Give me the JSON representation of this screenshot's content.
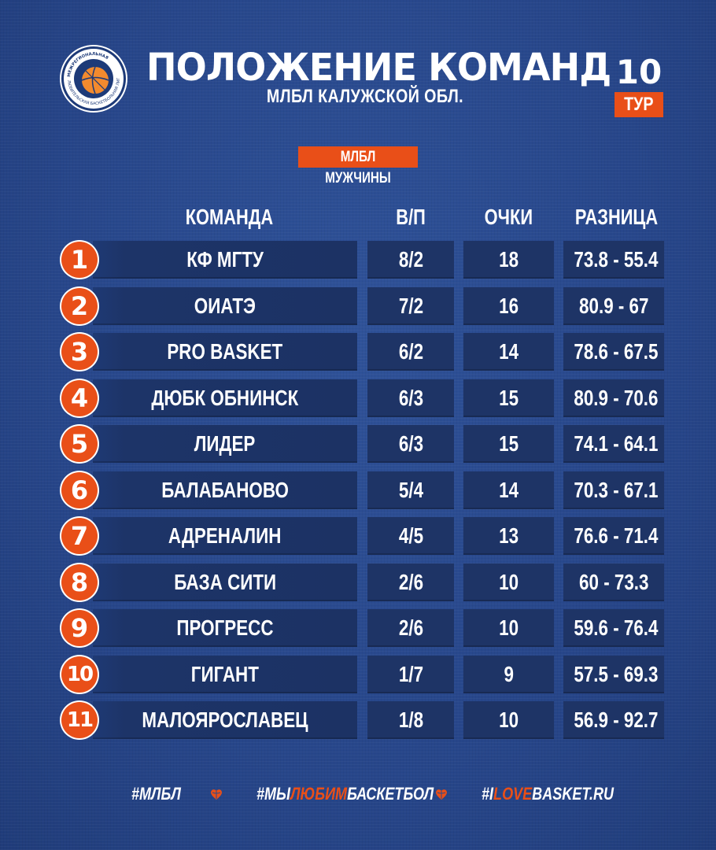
{
  "header": {
    "title": "ПОЛОЖЕНИЕ КОМАНД",
    "subtitle": "МЛБЛ КАЛУЖСКОЙ ОБЛ.",
    "round_number": "10",
    "round_label": "ТУР",
    "league_badge": "МЛБЛ МУЖЧИНЫ"
  },
  "logo": {
    "icon": "basketball-league-logo",
    "text": "МЕЖРЕГИОНАЛЬНАЯ ЛЮБИТЕЛЬСКАЯ БАСКЕТБОЛЬНАЯ ЛИГА"
  },
  "columns": {
    "team": "КОМАНДА",
    "wl": "В/П",
    "points": "ОЧКИ",
    "diff": "РАЗНИЦА"
  },
  "rows": [
    {
      "rank": "1",
      "team": "КФ МГТУ",
      "wl": "8/2",
      "points": "18",
      "diff": "73.8 - 55.4"
    },
    {
      "rank": "2",
      "team": "ОИАТЭ",
      "wl": "7/2",
      "points": "16",
      "diff": "80.9 - 67"
    },
    {
      "rank": "3",
      "team": "PRO BASKET",
      "wl": "6/2",
      "points": "14",
      "diff": "78.6 - 67.5"
    },
    {
      "rank": "4",
      "team": "ДЮБК ОБНИНСК",
      "wl": "6/3",
      "points": "15",
      "diff": "80.9 - 70.6"
    },
    {
      "rank": "5",
      "team": "ЛИДЕР",
      "wl": "6/3",
      "points": "15",
      "diff": "74.1 - 64.1"
    },
    {
      "rank": "6",
      "team": "БАЛАБАНОВО",
      "wl": "5/4",
      "points": "14",
      "diff": "70.3 - 67.1"
    },
    {
      "rank": "7",
      "team": "АДРЕНАЛИН",
      "wl": "4/5",
      "points": "13",
      "diff": "76.6 - 71.4"
    },
    {
      "rank": "8",
      "team": "БАЗА СИТИ",
      "wl": "2/6",
      "points": "10",
      "diff": "60 - 73.3"
    },
    {
      "rank": "9",
      "team": "ПРОГРЕСС",
      "wl": "2/6",
      "points": "10",
      "diff": "59.6 - 76.4"
    },
    {
      "rank": "10",
      "team": "ГИГАНТ",
      "wl": "1/7",
      "points": "9",
      "diff": "57.5 - 69.3"
    },
    {
      "rank": "11",
      "team": "МАЛОЯРОСЛАВЕЦ",
      "wl": "1/8",
      "points": "10",
      "diff": "56.9 - 92.7"
    }
  ],
  "footer": {
    "tag1": "#МЛБЛ",
    "tag2_prefix": "#МЫ",
    "tag2_accent": "ЛЮБИМ",
    "tag2_suffix": "БАСКЕТБОЛ",
    "tag3_prefix": "#I",
    "tag3_accent": "LOVE",
    "tag3_suffix": "BASKET.RU"
  },
  "colors": {
    "background": "#2a4a8e",
    "accent": "#e94f18",
    "row": "#1e3466",
    "text": "#ffffff"
  }
}
